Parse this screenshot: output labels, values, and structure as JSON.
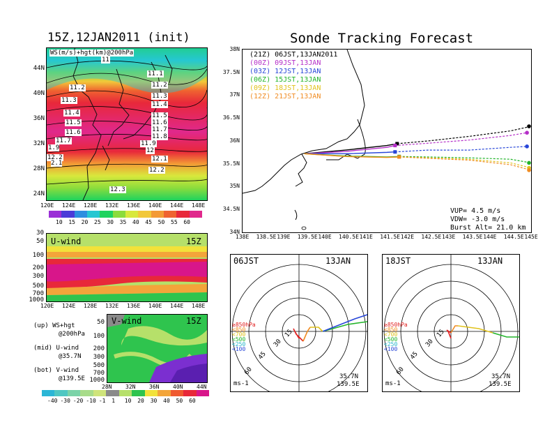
{
  "left_title": "15Z,12JAN2011 (init)",
  "right_title": "Sonde Tracking Forecast",
  "map_panel": {
    "label": "WS(m/s)+hgt(km)@200hPa",
    "lat_ticks": [
      "44N",
      "40N",
      "36N",
      "32N",
      "28N",
      "24N"
    ],
    "lon_ticks": [
      "120E",
      "124E",
      "128E",
      "132E",
      "136E",
      "140E",
      "144E",
      "148E"
    ],
    "contour_labels": [
      "11",
      "11.1",
      "11.2",
      "11.2",
      "11.3",
      "11.3",
      "11.4",
      "11.4",
      "11.5",
      "11.5",
      "11.6",
      "11.6",
      "11.7",
      "11.7",
      "11.8",
      "11.9",
      "12",
      "12.1",
      "12.2",
      "12.2",
      "12.3",
      "1.9",
      "2.1"
    ],
    "colorbar_ticks": [
      "10",
      "15",
      "20",
      "25",
      "30",
      "35",
      "40",
      "45",
      "50",
      "55",
      "60"
    ],
    "colorbar_colors": [
      "#9b2fd6",
      "#4b3bd8",
      "#2d8fe0",
      "#26c7d2",
      "#1fd35e",
      "#8bdc3c",
      "#d8e83c",
      "#f2c83a",
      "#f39a35",
      "#ef6330",
      "#e8283a",
      "#e0288c"
    ]
  },
  "u_panel": {
    "label": "U-wind",
    "time": "15Z",
    "y_ticks": [
      "30",
      "50",
      "100",
      "200",
      "300",
      "500",
      "700",
      "1000"
    ],
    "x_ticks": [
      "120E",
      "124E",
      "128E",
      "132E",
      "136E",
      "140E",
      "144E",
      "148E"
    ]
  },
  "v_panel": {
    "label": "V-wind",
    "time": "15Z",
    "y_ticks": [
      "50",
      "100",
      "200",
      "300",
      "500",
      "700",
      "1000"
    ],
    "x_ticks": [
      "28N",
      "32N",
      "36N",
      "40N",
      "44N"
    ]
  },
  "legend_notes": [
    "(up) WS+hgt",
    "@200hPa",
    "(mid) U-wind",
    "@35.7N",
    "(bot) V-wind",
    "@139.5E"
  ],
  "bottom_colorbar": {
    "ticks": [
      "-40",
      "-30",
      "-20",
      "-10",
      "-1",
      "1",
      "10",
      "20",
      "30",
      "40",
      "50",
      "60"
    ],
    "colors": [
      "#2bb6d6",
      "#4fc7c2",
      "#7bd3a8",
      "#a8dc8a",
      "#cfe47a",
      "#8a8a8a",
      "#b6e06a",
      "#2fc44e",
      "#f2e23a",
      "#f3a53a",
      "#ef5a30",
      "#e8283a",
      "#d8168a"
    ]
  },
  "tracking": {
    "lat_ticks": [
      "38N",
      "37.5N",
      "37N",
      "36.5N",
      "36N",
      "35.5N",
      "35N",
      "34.5N",
      "34N"
    ],
    "lon_ticks": [
      "138E",
      "138.5E",
      "139E",
      "139.5E",
      "140E",
      "140.5E",
      "141E",
      "141.5E",
      "142E",
      "142.5E",
      "143E",
      "143.5E",
      "144E",
      "144.5E",
      "145E"
    ],
    "launches": [
      {
        "code": "(21Z)",
        "time": "06JST,13JAN2011",
        "color": "#000000"
      },
      {
        "code": "(00Z)",
        "time": "09JST,13JAN",
        "color": "#b52fc8"
      },
      {
        "code": "(03Z)",
        "time": "12JST,13JAN",
        "color": "#2746d8"
      },
      {
        "code": "(06Z)",
        "time": "15JST,13JAN",
        "color": "#22b42a"
      },
      {
        "code": "(09Z)",
        "time": "18JST,13JAN",
        "color": "#e0c21c"
      },
      {
        "code": "(12Z)",
        "time": "21JST,13JAN",
        "color": "#f08c22"
      }
    ],
    "vup": "VUP= 4.5 m/s",
    "vdw": "VDW= -3.0 m/s",
    "burst": "Burst Alt= 21.0 km"
  },
  "hodo_left": {
    "time": "06JST",
    "date": "13JAN",
    "unit": "ms-1",
    "lat": "35.7N",
    "lon": "139.5E"
  },
  "hodo_right": {
    "time": "18JST",
    "date": "13JAN",
    "unit": "ms-1",
    "lat": "35.7N",
    "lon": "139.5E"
  },
  "hodo_rings": [
    "15",
    "30",
    "45",
    "60"
  ],
  "hodo_legend": [
    {
      "label": "≥850hPa",
      "color": "#e02020"
    },
    {
      "label": "<850",
      "color": "#f08c22"
    },
    {
      "label": "<700",
      "color": "#e0c21c"
    },
    {
      "label": "<500",
      "color": "#22b42a"
    },
    {
      "label": "<250",
      "color": "#22b4c8"
    },
    {
      "label": "<100",
      "color": "#2746d8"
    }
  ],
  "chart_data": [
    {
      "type": "line",
      "title": "Sonde Tracking Forecast",
      "xlabel": "",
      "ylabel": "",
      "xlim": [
        138,
        145
      ],
      "ylim": [
        34,
        38
      ],
      "series": [
        {
          "name": "(21Z) 06JST,13JAN2011",
          "color": "#000000",
          "x": [
            139.5,
            140.5,
            141.5,
            141.75,
            142.5,
            143.5,
            144.5,
            145.0
          ],
          "y": [
            35.72,
            35.8,
            35.9,
            35.94,
            36.0,
            36.1,
            36.22,
            36.32
          ]
        },
        {
          "name": "(00Z) 09JST,13JAN",
          "color": "#b52fc8",
          "x": [
            139.5,
            140.5,
            141.5,
            141.7,
            142.5,
            143.5,
            144.5,
            144.9
          ],
          "y": [
            35.72,
            35.77,
            35.86,
            35.9,
            35.95,
            36.02,
            36.12,
            36.18
          ]
        },
        {
          "name": "(03Z) 12JST,13JAN",
          "color": "#2746d8",
          "x": [
            139.5,
            140.5,
            141.5,
            141.7,
            142.5,
            143.5,
            144.5,
            144.9
          ],
          "y": [
            35.72,
            35.72,
            35.75,
            35.76,
            35.8,
            35.8,
            35.86,
            35.88
          ]
        },
        {
          "name": "(06Z) 15JST,13JAN",
          "color": "#22b42a",
          "x": [
            139.5,
            140.5,
            141.5,
            141.8,
            142.5,
            143.5,
            144.5,
            145.0
          ],
          "y": [
            35.72,
            35.67,
            35.65,
            35.66,
            35.65,
            35.63,
            35.6,
            35.52
          ]
        },
        {
          "name": "(09Z) 18JST,13JAN",
          "color": "#e0c21c",
          "x": [
            139.5,
            140.5,
            141.5,
            141.8,
            142.5,
            143.5,
            144.5,
            145.0
          ],
          "y": [
            35.72,
            35.66,
            35.64,
            35.65,
            35.63,
            35.6,
            35.52,
            35.41
          ]
        },
        {
          "name": "(12Z) 21JST,13JAN",
          "color": "#f08c22",
          "x": [
            139.5,
            140.5,
            141.5,
            141.8,
            142.5,
            143.5,
            144.5,
            145.0
          ],
          "y": [
            35.72,
            35.66,
            35.64,
            35.65,
            35.62,
            35.58,
            35.48,
            35.36
          ]
        }
      ],
      "grid": false,
      "legend": "top-left"
    }
  ]
}
